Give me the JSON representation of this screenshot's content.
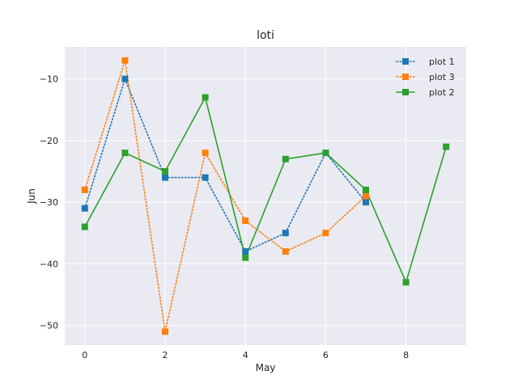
{
  "chart_data": {
    "type": "line",
    "title": "loti",
    "xlabel": "May",
    "ylabel": "Jun",
    "xlim": [
      -0.5,
      9.5
    ],
    "ylim": [
      -53.2,
      -4.8
    ],
    "xticks": [
      0,
      2,
      4,
      6,
      8
    ],
    "yticks": [
      -50,
      -40,
      -30,
      -20,
      -10
    ],
    "grid": true,
    "legend_position": "top-right",
    "series": [
      {
        "name": "plot 1",
        "color": "#1f77b4",
        "linestyle": "dotted",
        "marker": "square",
        "x": [
          0,
          1,
          2,
          3,
          4,
          5,
          6,
          7
        ],
        "y": [
          -31,
          -10,
          -26,
          -26,
          -38,
          -35,
          -22,
          -30
        ]
      },
      {
        "name": "plot 3",
        "color": "#ff7f0e",
        "linestyle": "dotted",
        "marker": "square",
        "x": [
          0,
          1,
          2,
          3,
          4,
          5,
          6,
          7
        ],
        "y": [
          -28,
          -7,
          -51,
          -22,
          -33,
          -38,
          -35,
          -29
        ]
      },
      {
        "name": "plot 2",
        "color": "#2ca02c",
        "linestyle": "solid",
        "marker": "square",
        "x": [
          0,
          1,
          2,
          3,
          4,
          5,
          6,
          7,
          8,
          9
        ],
        "y": [
          -34,
          -22,
          -25,
          -13,
          -39,
          -23,
          -22,
          -28,
          -43,
          -21
        ]
      }
    ]
  }
}
